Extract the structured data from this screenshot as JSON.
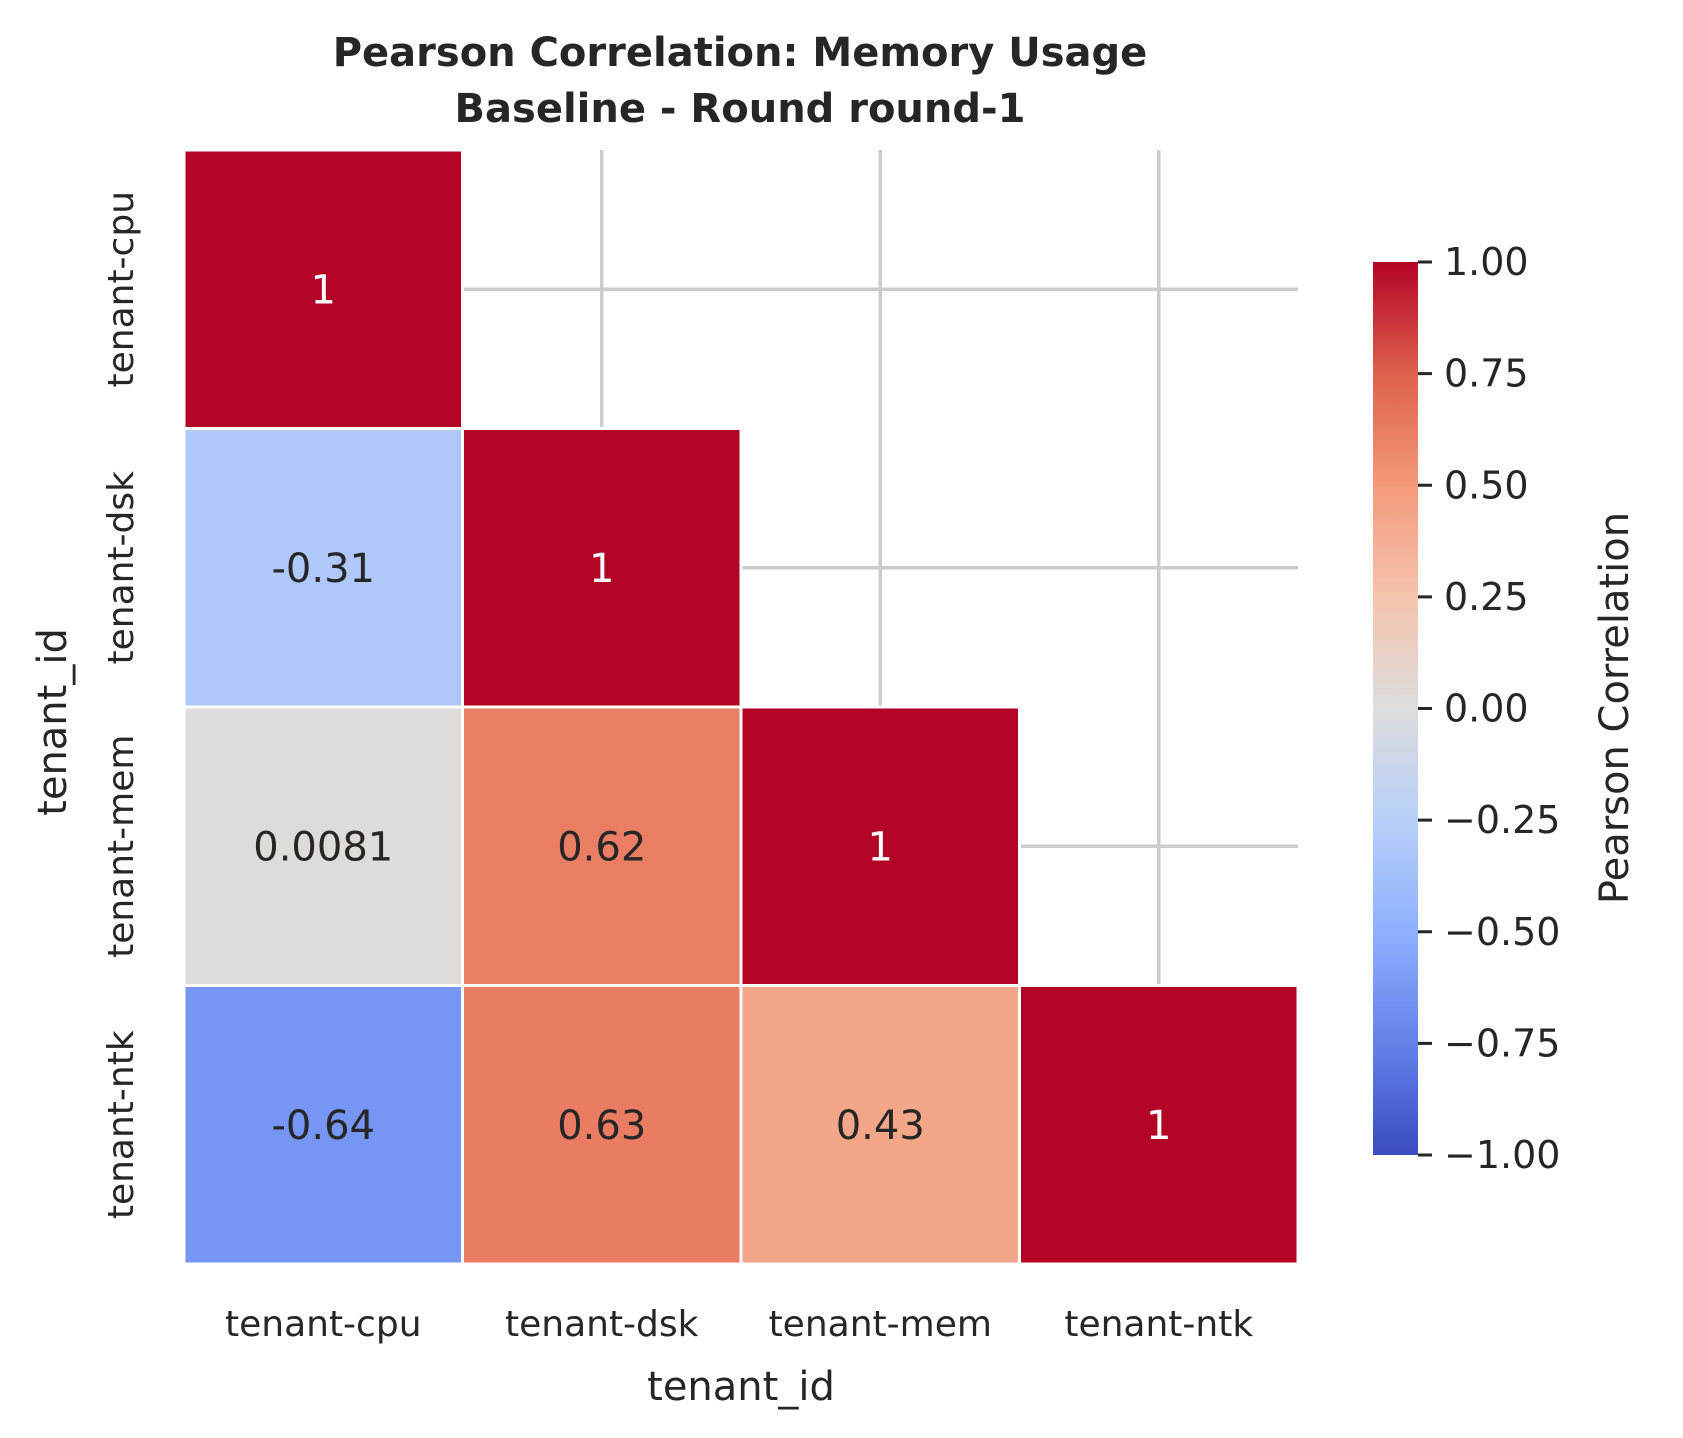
{
  "chart_data": {
    "type": "heatmap",
    "title_lines": [
      "Pearson Correlation: Memory Usage",
      "Baseline - Round round-1"
    ],
    "xlabel": "tenant_id",
    "ylabel": "tenant_id",
    "x_categories": [
      "tenant-cpu",
      "tenant-dsk",
      "tenant-mem",
      "tenant-ntk"
    ],
    "y_categories": [
      "tenant-cpu",
      "tenant-dsk",
      "tenant-mem",
      "tenant-ntk"
    ],
    "mask": "upper-triangle",
    "cells": [
      {
        "row": 0,
        "col": 0,
        "value": 1,
        "label": "1"
      },
      {
        "row": 1,
        "col": 0,
        "value": -0.31,
        "label": "-0.31"
      },
      {
        "row": 1,
        "col": 1,
        "value": 1,
        "label": "1"
      },
      {
        "row": 2,
        "col": 0,
        "value": 0.0081,
        "label": "0.0081"
      },
      {
        "row": 2,
        "col": 1,
        "value": 0.62,
        "label": "0.62"
      },
      {
        "row": 2,
        "col": 2,
        "value": 1,
        "label": "1"
      },
      {
        "row": 3,
        "col": 0,
        "value": -0.64,
        "label": "-0.64"
      },
      {
        "row": 3,
        "col": 1,
        "value": 0.63,
        "label": "0.63"
      },
      {
        "row": 3,
        "col": 2,
        "value": 0.43,
        "label": "0.43"
      },
      {
        "row": 3,
        "col": 3,
        "value": 1,
        "label": "1"
      }
    ],
    "colorbar": {
      "label": "Pearson Correlation",
      "range": [
        -1,
        1
      ],
      "ticks": [
        1.0,
        0.75,
        0.5,
        0.25,
        0.0,
        -0.25,
        -0.5,
        -0.75,
        -1.0
      ],
      "tick_labels": [
        "1.00",
        "0.75",
        "0.50",
        "0.25",
        "0.00",
        "−0.25",
        "−0.50",
        "−0.75",
        "−1.00"
      ]
    },
    "colormap": "coolwarm",
    "grid": true
  }
}
